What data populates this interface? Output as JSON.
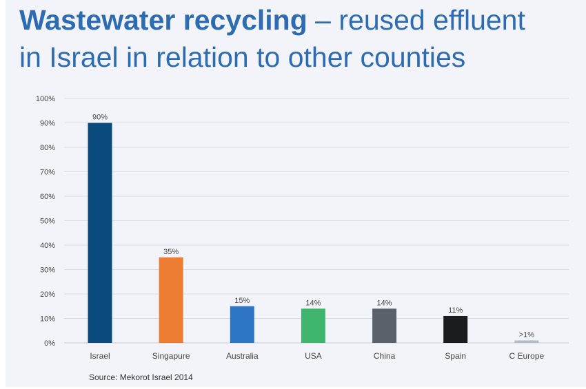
{
  "title": {
    "bold": "Wastewater recycling",
    "rest_line1": " – reused effluent",
    "line2": "in Israel in relation to other counties"
  },
  "source": "Source: Mekorot Israel 2014",
  "colors": {
    "title": "#2e6cb2",
    "background": "#f2f4f9",
    "grid": "#d9dde6",
    "axis_text": "#444444"
  },
  "chart_data": {
    "type": "bar",
    "title": "Wastewater recycling – reused effluent in Israel in relation to other counties",
    "xlabel": "",
    "ylabel": "",
    "ylim": [
      0,
      100
    ],
    "yticks": [
      "0%",
      "10%",
      "20%",
      "30%",
      "40%",
      "50%",
      "60%",
      "70%",
      "80%",
      "90%",
      "100%"
    ],
    "grid": true,
    "categories": [
      "Israel",
      "Singapure",
      "Australia",
      "USA",
      "China",
      "Spain",
      "C Europe"
    ],
    "values": [
      90,
      35,
      15,
      14,
      14,
      11,
      1
    ],
    "labels": [
      "90%",
      "35%",
      "15%",
      "14%",
      "14%",
      "11%",
      ">1%"
    ],
    "colors": [
      "#0a4a7c",
      "#ed7d31",
      "#2e75c5",
      "#3fb56e",
      "#5a6169",
      "#1a1c20",
      "#b5bcc4"
    ]
  }
}
